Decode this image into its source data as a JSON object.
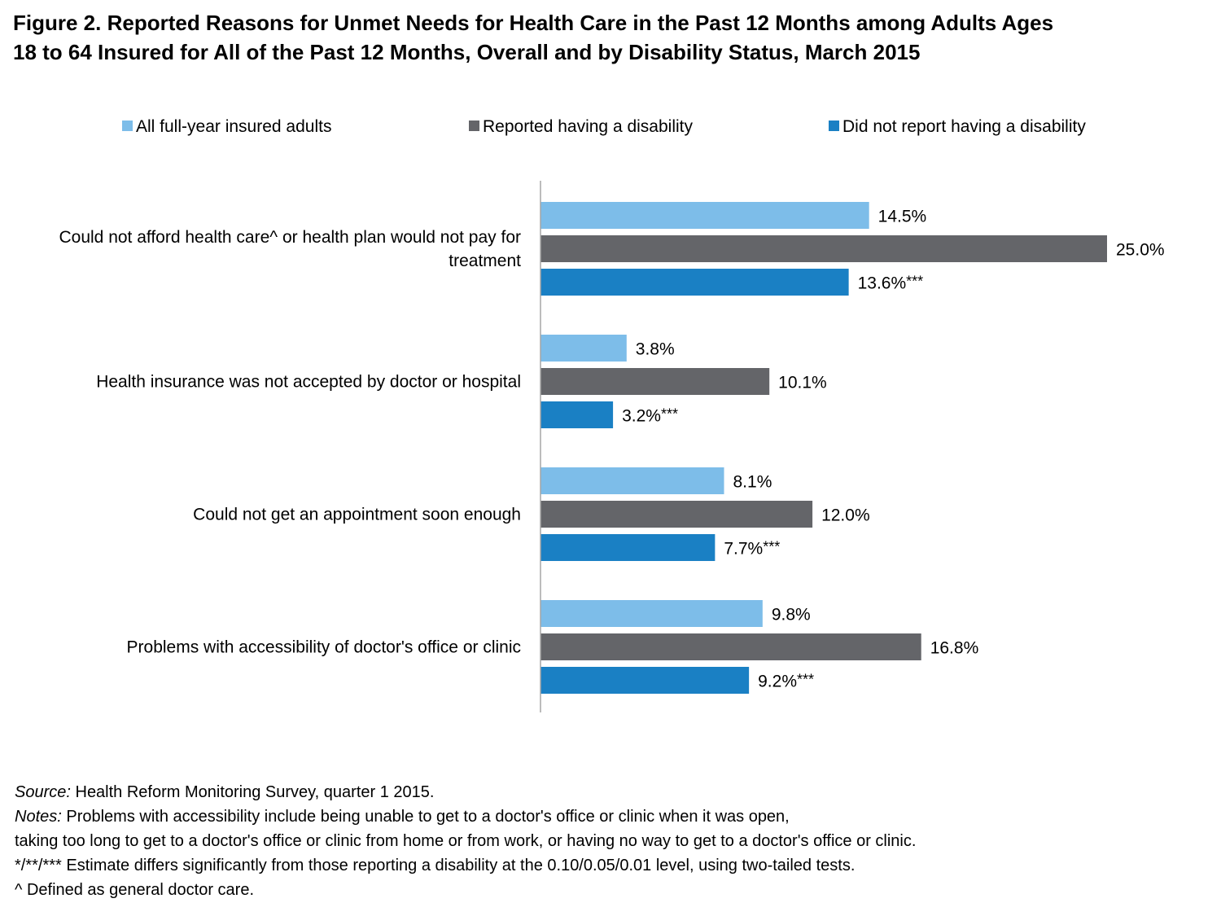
{
  "title": {
    "line1": "Figure 2. Reported Reasons for Unmet Needs for Health Care in the Past 12 Months among Adults Ages",
    "line2": "18 to 64 Insured for All of the Past 12 Months, Overall and by Disability Status, March 2015"
  },
  "colors": {
    "all": "#7dbde9",
    "disability": "#646569",
    "no_disability": "#1a80c4",
    "axis": "#a6a6a6"
  },
  "chart_data": {
    "type": "bar",
    "orientation": "horizontal",
    "categories": [
      [
        "Could not afford health care^ or health plan would not pay for",
        "treatment"
      ],
      [
        "Health insurance was not accepted by doctor or hospital"
      ],
      [
        "Could not get an appointment soon enough"
      ],
      [
        "Problems with accessibility of doctor's office or clinic"
      ]
    ],
    "series": [
      {
        "name": "All full-year insured adults",
        "key": "all",
        "values": [
          14.5,
          3.8,
          8.1,
          9.8
        ],
        "labels": [
          "14.5%",
          "3.8%",
          "8.1%",
          "9.8%"
        ],
        "marks": [
          "",
          "",
          "",
          ""
        ]
      },
      {
        "name": "Reported having a disability",
        "key": "disability",
        "values": [
          25.0,
          10.1,
          12.0,
          16.8
        ],
        "labels": [
          "25.0%",
          "10.1%",
          "12.0%",
          "16.8%"
        ],
        "marks": [
          "",
          "",
          "",
          ""
        ]
      },
      {
        "name": "Did not report having a disability",
        "key": "no_disability",
        "values": [
          13.6,
          3.2,
          7.7,
          9.2
        ],
        "labels": [
          "13.6%",
          "3.2%",
          "7.7%",
          "9.2%"
        ],
        "marks": [
          "***",
          "***",
          "***",
          "***"
        ]
      }
    ],
    "xlim": [
      0,
      25
    ],
    "legend_position": "top",
    "grid": false
  },
  "footer": {
    "source_label": "Source:",
    "source_text": " Health Reform Monitoring Survey, quarter 1 2015.",
    "notes_label": "Notes:",
    "notes_text": " Problems with accessibility include being unable to get to a doctor's office or clinic when it was open,",
    "notes_line2": "taking too long to get to a doctor's office or clinic from home or from work, or having no way to get to a doctor's office or clinic.",
    "significance": "*/**/*** Estimate differs significantly from those reporting a disability at the 0.10/0.05/0.01 level, using two-tailed tests.",
    "caret_note": "^ Defined as general doctor care."
  }
}
